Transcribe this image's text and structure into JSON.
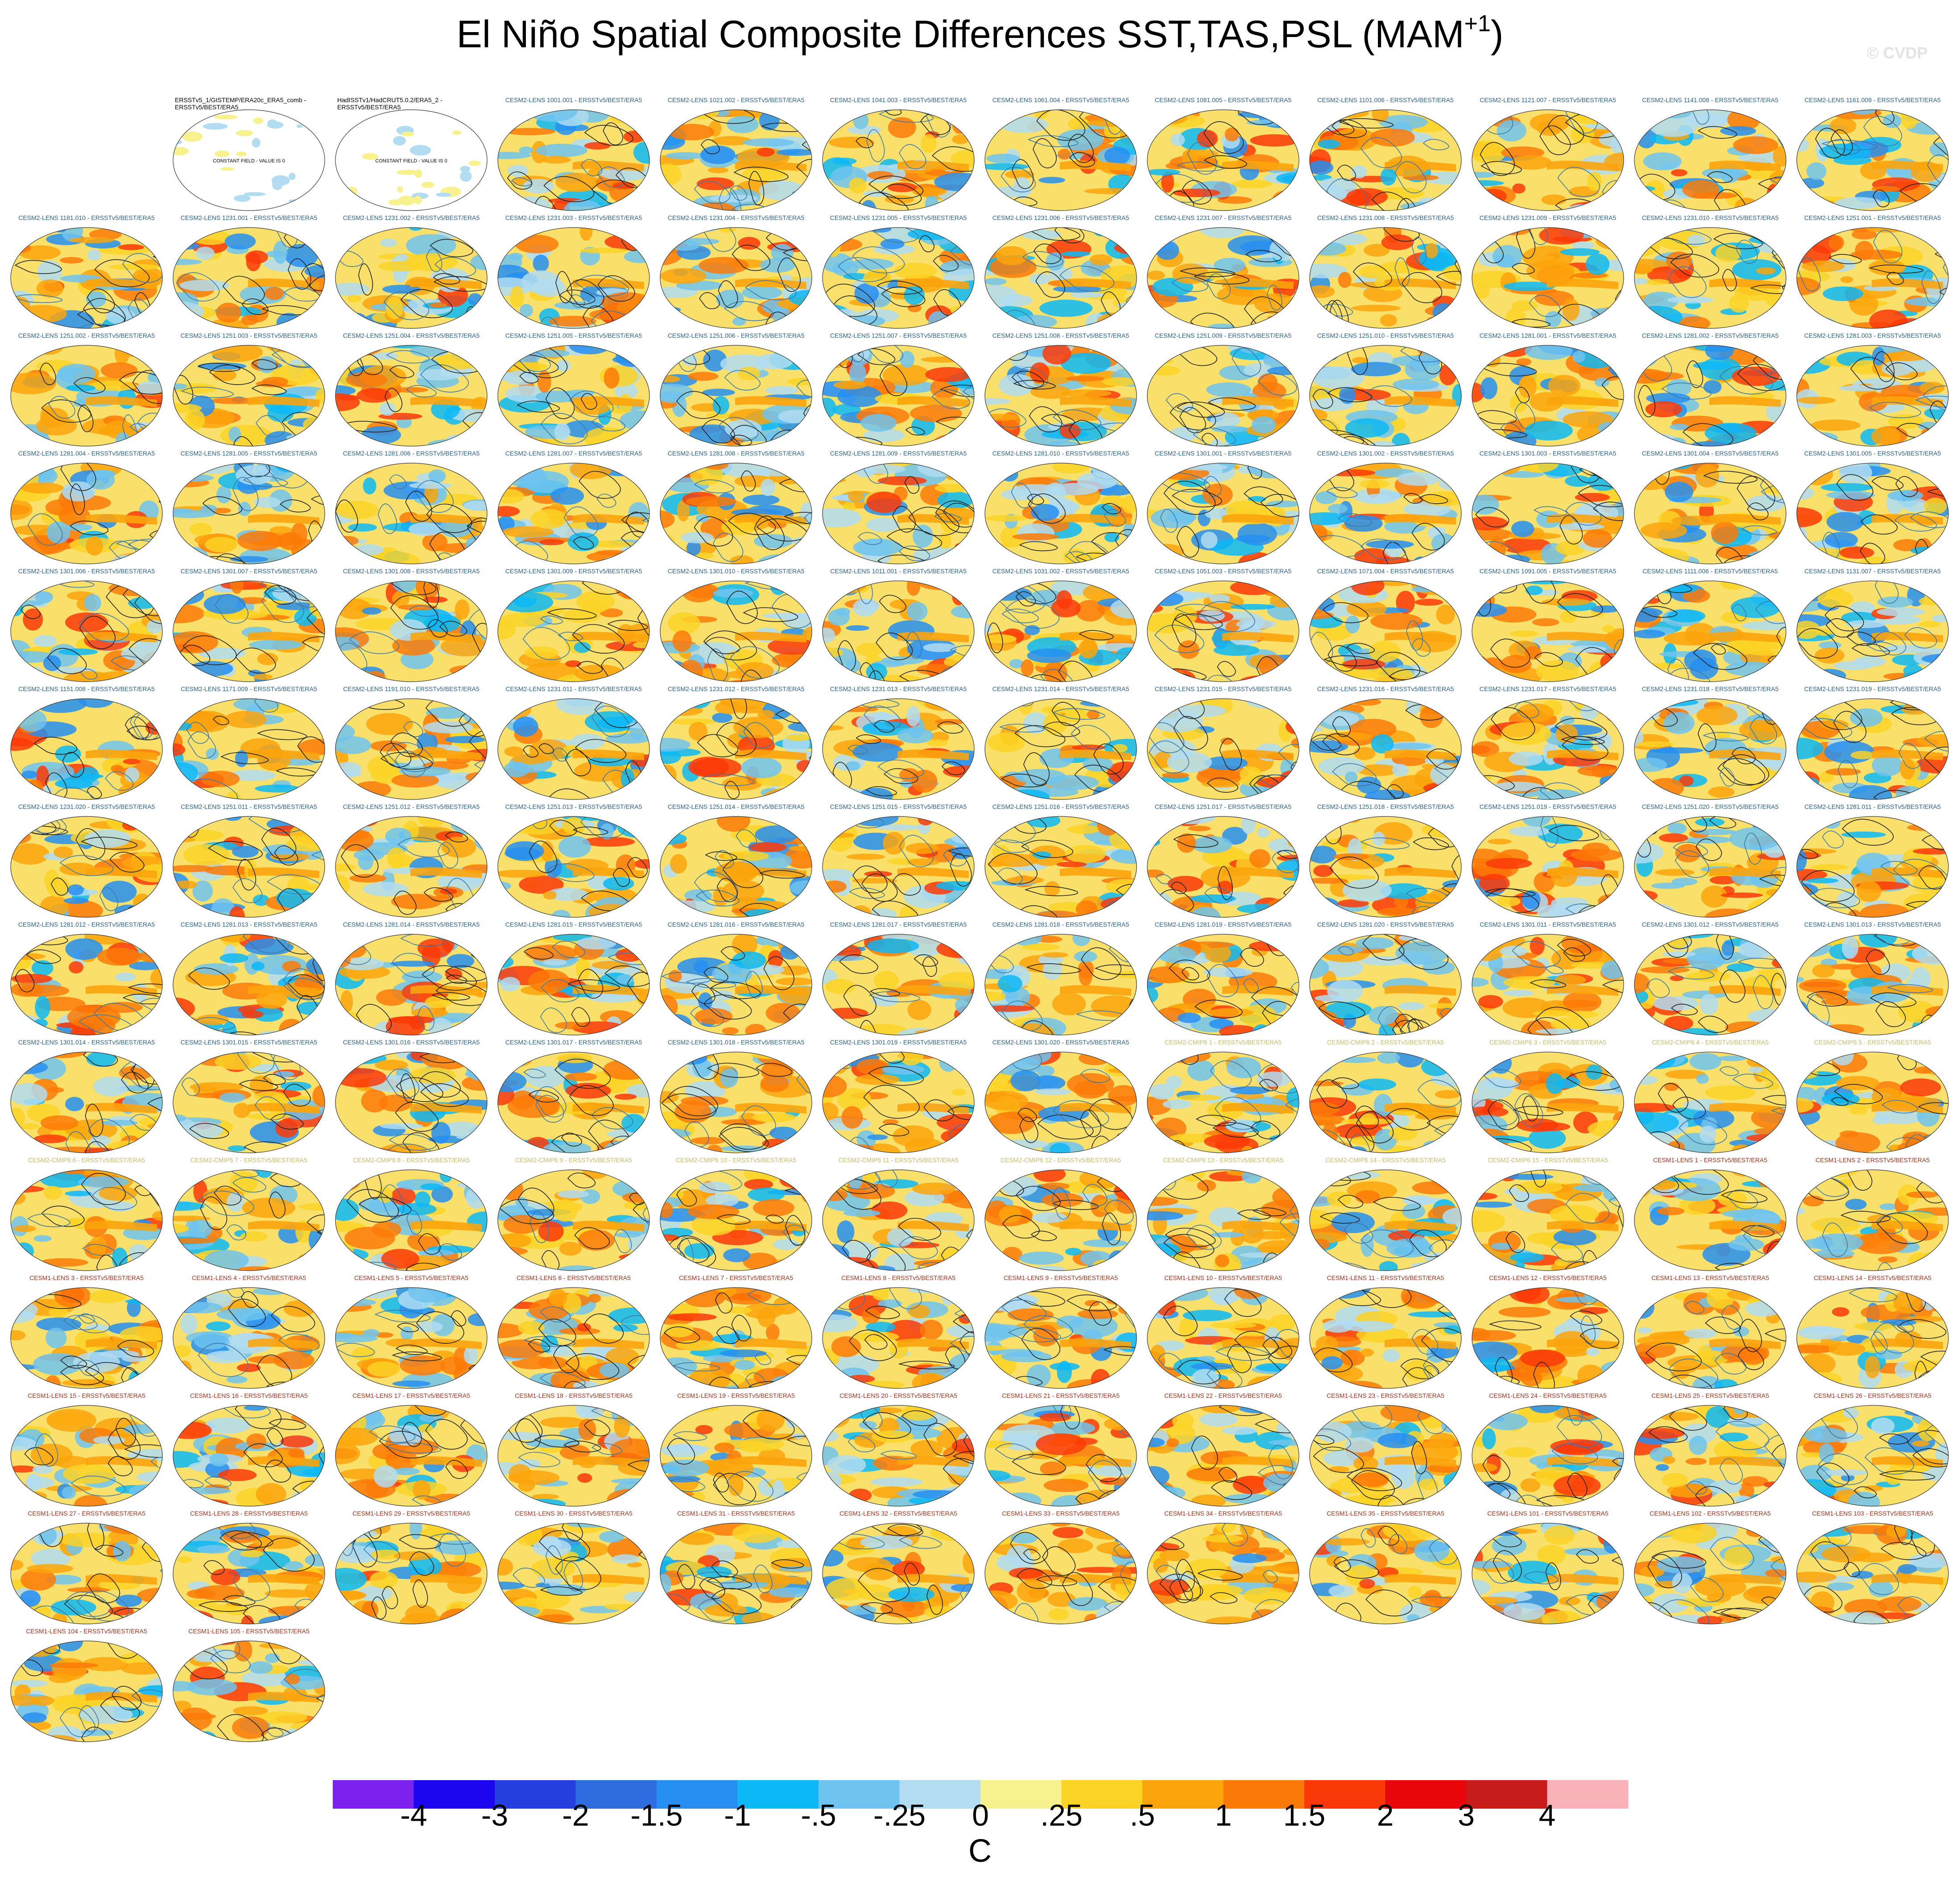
{
  "title": "El Niño Spatial Composite Differences SST,TAS,PSL (MAM",
  "title_superscript": "+1",
  "title_suffix": ")",
  "credit": "© CVDP",
  "label_colors": {
    "obs": "#000000",
    "cesm2_lens": "#2b5f86",
    "cesm2_cmip6": "#c8ba6a",
    "cesm1_lens": "#a0321c"
  },
  "panels": [
    {
      "label": "ERSSTv5_1/GISTEMP/ERA20c_ERA5_comb - ERSSTv5/BEST/ERA5",
      "group": "obs"
    },
    {
      "label": "HadISSTv1/HadCRUT5.0.2/ERA5_2 - ERSSTv5/BEST/ERA5",
      "group": "obs"
    },
    {
      "label": "CESM2-LENS 1001.001 - ERSSTv5/BEST/ERA5",
      "group": "cesm2_lens"
    },
    {
      "label": "CESM2-LENS 1021.002 - ERSSTv5/BEST/ERA5",
      "group": "cesm2_lens"
    },
    {
      "label": "CESM2-LENS 1041.003 - ERSSTv5/BEST/ERA5",
      "group": "cesm2_lens"
    },
    {
      "label": "CESM2-LENS 1061.004 - ERSSTv5/BEST/ERA5",
      "group": "cesm2_lens"
    },
    {
      "label": "CESM2-LENS 1081.005 - ERSSTv5/BEST/ERA5",
      "group": "cesm2_lens"
    },
    {
      "label": "CESM2-LENS 1101.006 - ERSSTv5/BEST/ERA5",
      "group": "cesm2_lens"
    },
    {
      "label": "CESM2-LENS 1121.007 - ERSSTv5/BEST/ERA5",
      "group": "cesm2_lens"
    },
    {
      "label": "CESM2-LENS 1141.008 - ERSSTv5/BEST/ERA5",
      "group": "cesm2_lens"
    },
    {
      "label": "CESM2-LENS 1161.009 - ERSSTv5/BEST/ERA5",
      "group": "cesm2_lens"
    },
    {
      "label": "CESM2-LENS 1181.010 - ERSSTv5/BEST/ERA5",
      "group": "cesm2_lens"
    },
    {
      "label": "CESM2-LENS 1231.001 - ERSSTv5/BEST/ERA5",
      "group": "cesm2_lens"
    },
    {
      "label": "CESM2-LENS 1231.002 - ERSSTv5/BEST/ERA5",
      "group": "cesm2_lens"
    },
    {
      "label": "CESM2-LENS 1231.003 - ERSSTv5/BEST/ERA5",
      "group": "cesm2_lens"
    },
    {
      "label": "CESM2-LENS 1231.004 - ERSSTv5/BEST/ERA5",
      "group": "cesm2_lens"
    },
    {
      "label": "CESM2-LENS 1231.005 - ERSSTv5/BEST/ERA5",
      "group": "cesm2_lens"
    },
    {
      "label": "CESM2-LENS 1231.006 - ERSSTv5/BEST/ERA5",
      "group": "cesm2_lens"
    },
    {
      "label": "CESM2-LENS 1231.007 - ERSSTv5/BEST/ERA5",
      "group": "cesm2_lens"
    },
    {
      "label": "CESM2-LENS 1231.008 - ERSSTv5/BEST/ERA5",
      "group": "cesm2_lens"
    },
    {
      "label": "CESM2-LENS 1231.009 - ERSSTv5/BEST/ERA5",
      "group": "cesm2_lens"
    },
    {
      "label": "CESM2-LENS 1231.010 - ERSSTv5/BEST/ERA5",
      "group": "cesm2_lens"
    },
    {
      "label": "CESM2-LENS 1251.001 - ERSSTv5/BEST/ERA5",
      "group": "cesm2_lens"
    },
    {
      "label": "CESM2-LENS 1251.002 - ERSSTv5/BEST/ERA5",
      "group": "cesm2_lens"
    },
    {
      "label": "CESM2-LENS 1251.003 - ERSSTv5/BEST/ERA5",
      "group": "cesm2_lens"
    },
    {
      "label": "CESM2-LENS 1251.004 - ERSSTv5/BEST/ERA5",
      "group": "cesm2_lens"
    },
    {
      "label": "CESM2-LENS 1251.005 - ERSSTv5/BEST/ERA5",
      "group": "cesm2_lens"
    },
    {
      "label": "CESM2-LENS 1251.006 - ERSSTv5/BEST/ERA5",
      "group": "cesm2_lens"
    },
    {
      "label": "CESM2-LENS 1251.007 - ERSSTv5/BEST/ERA5",
      "group": "cesm2_lens"
    },
    {
      "label": "CESM2-LENS 1251.008 - ERSSTv5/BEST/ERA5",
      "group": "cesm2_lens"
    },
    {
      "label": "CESM2-LENS 1251.009 - ERSSTv5/BEST/ERA5",
      "group": "cesm2_lens"
    },
    {
      "label": "CESM2-LENS 1251.010 - ERSSTv5/BEST/ERA5",
      "group": "cesm2_lens"
    },
    {
      "label": "CESM2-LENS 1281.001 - ERSSTv5/BEST/ERA5",
      "group": "cesm2_lens"
    },
    {
      "label": "CESM2-LENS 1281.002 - ERSSTv5/BEST/ERA5",
      "group": "cesm2_lens"
    },
    {
      "label": "CESM2-LENS 1281.003 - ERSSTv5/BEST/ERA5",
      "group": "cesm2_lens"
    },
    {
      "label": "CESM2-LENS 1281.004 - ERSSTv5/BEST/ERA5",
      "group": "cesm2_lens"
    },
    {
      "label": "CESM2-LENS 1281.005 - ERSSTv5/BEST/ERA5",
      "group": "cesm2_lens"
    },
    {
      "label": "CESM2-LENS 1281.006 - ERSSTv5/BEST/ERA5",
      "group": "cesm2_lens"
    },
    {
      "label": "CESM2-LENS 1281.007 - ERSSTv5/BEST/ERA5",
      "group": "cesm2_lens"
    },
    {
      "label": "CESM2-LENS 1281.008 - ERSSTv5/BEST/ERA5",
      "group": "cesm2_lens"
    },
    {
      "label": "CESM2-LENS 1281.009 - ERSSTv5/BEST/ERA5",
      "group": "cesm2_lens"
    },
    {
      "label": "CESM2-LENS 1281.010 - ERSSTv5/BEST/ERA5",
      "group": "cesm2_lens"
    },
    {
      "label": "CESM2-LENS 1301.001 - ERSSTv5/BEST/ERA5",
      "group": "cesm2_lens"
    },
    {
      "label": "CESM2-LENS 1301.002 - ERSSTv5/BEST/ERA5",
      "group": "cesm2_lens"
    },
    {
      "label": "CESM2-LENS 1301.003 - ERSSTv5/BEST/ERA5",
      "group": "cesm2_lens"
    },
    {
      "label": "CESM2-LENS 1301.004 - ERSSTv5/BEST/ERA5",
      "group": "cesm2_lens"
    },
    {
      "label": "CESM2-LENS 1301.005 - ERSSTv5/BEST/ERA5",
      "group": "cesm2_lens"
    },
    {
      "label": "CESM2-LENS 1301.006 - ERSSTv5/BEST/ERA5",
      "group": "cesm2_lens"
    },
    {
      "label": "CESM2-LENS 1301.007 - ERSSTv5/BEST/ERA5",
      "group": "cesm2_lens"
    },
    {
      "label": "CESM2-LENS 1301.008 - ERSSTv5/BEST/ERA5",
      "group": "cesm2_lens"
    },
    {
      "label": "CESM2-LENS 1301.009 - ERSSTv5/BEST/ERA5",
      "group": "cesm2_lens"
    },
    {
      "label": "CESM2-LENS 1301.010 - ERSSTv5/BEST/ERA5",
      "group": "cesm2_lens"
    },
    {
      "label": "CESM2-LENS 1011.001 - ERSSTv5/BEST/ERA5",
      "group": "cesm2_lens"
    },
    {
      "label": "CESM2-LENS 1031.002 - ERSSTv5/BEST/ERA5",
      "group": "cesm2_lens"
    },
    {
      "label": "CESM2-LENS 1051.003 - ERSSTv5/BEST/ERA5",
      "group": "cesm2_lens"
    },
    {
      "label": "CESM2-LENS 1071.004 - ERSSTv5/BEST/ERA5",
      "group": "cesm2_lens"
    },
    {
      "label": "CESM2-LENS 1091.005 - ERSSTv5/BEST/ERA5",
      "group": "cesm2_lens"
    },
    {
      "label": "CESM2-LENS 1111.006 - ERSSTv5/BEST/ERA5",
      "group": "cesm2_lens"
    },
    {
      "label": "CESM2-LENS 1131.007 - ERSSTv5/BEST/ERA5",
      "group": "cesm2_lens"
    },
    {
      "label": "CESM2-LENS 1151.008 - ERSSTv5/BEST/ERA5",
      "group": "cesm2_lens"
    },
    {
      "label": "CESM2-LENS 1171.009 - ERSSTv5/BEST/ERA5",
      "group": "cesm2_lens"
    },
    {
      "label": "CESM2-LENS 1191.010 - ERSSTv5/BEST/ERA5",
      "group": "cesm2_lens"
    },
    {
      "label": "CESM2-LENS 1231.011 - ERSSTv5/BEST/ERA5",
      "group": "cesm2_lens"
    },
    {
      "label": "CESM2-LENS 1231.012 - ERSSTv5/BEST/ERA5",
      "group": "cesm2_lens"
    },
    {
      "label": "CESM2-LENS 1231.013 - ERSSTv5/BEST/ERA5",
      "group": "cesm2_lens"
    },
    {
      "label": "CESM2-LENS 1231.014 - ERSSTv5/BEST/ERA5",
      "group": "cesm2_lens"
    },
    {
      "label": "CESM2-LENS 1231.015 - ERSSTv5/BEST/ERA5",
      "group": "cesm2_lens"
    },
    {
      "label": "CESM2-LENS 1231.016 - ERSSTv5/BEST/ERA5",
      "group": "cesm2_lens"
    },
    {
      "label": "CESM2-LENS 1231.017 - ERSSTv5/BEST/ERA5",
      "group": "cesm2_lens"
    },
    {
      "label": "CESM2-LENS 1231.018 - ERSSTv5/BEST/ERA5",
      "group": "cesm2_lens"
    },
    {
      "label": "CESM2-LENS 1231.019 - ERSSTv5/BEST/ERA5",
      "group": "cesm2_lens"
    },
    {
      "label": "CESM2-LENS 1231.020 - ERSSTv5/BEST/ERA5",
      "group": "cesm2_lens"
    },
    {
      "label": "CESM2-LENS 1251.011 - ERSSTv5/BEST/ERA5",
      "group": "cesm2_lens"
    },
    {
      "label": "CESM2-LENS 1251.012 - ERSSTv5/BEST/ERA5",
      "group": "cesm2_lens"
    },
    {
      "label": "CESM2-LENS 1251.013 - ERSSTv5/BEST/ERA5",
      "group": "cesm2_lens"
    },
    {
      "label": "CESM2-LENS 1251.014 - ERSSTv5/BEST/ERA5",
      "group": "cesm2_lens"
    },
    {
      "label": "CESM2-LENS 1251.015 - ERSSTv5/BEST/ERA5",
      "group": "cesm2_lens"
    },
    {
      "label": "CESM2-LENS 1251.016 - ERSSTv5/BEST/ERA5",
      "group": "cesm2_lens"
    },
    {
      "label": "CESM2-LENS 1251.017 - ERSSTv5/BEST/ERA5",
      "group": "cesm2_lens"
    },
    {
      "label": "CESM2-LENS 1251.018 - ERSSTv5/BEST/ERA5",
      "group": "cesm2_lens"
    },
    {
      "label": "CESM2-LENS 1251.019 - ERSSTv5/BEST/ERA5",
      "group": "cesm2_lens"
    },
    {
      "label": "CESM2-LENS 1251.020 - ERSSTv5/BEST/ERA5",
      "group": "cesm2_lens"
    },
    {
      "label": "CESM2-LENS 1281.011 - ERSSTv5/BEST/ERA5",
      "group": "cesm2_lens"
    },
    {
      "label": "CESM2-LENS 1281.012 - ERSSTv5/BEST/ERA5",
      "group": "cesm2_lens"
    },
    {
      "label": "CESM2-LENS 1281.013 - ERSSTv5/BEST/ERA5",
      "group": "cesm2_lens"
    },
    {
      "label": "CESM2-LENS 1281.014 - ERSSTv5/BEST/ERA5",
      "group": "cesm2_lens"
    },
    {
      "label": "CESM2-LENS 1281.015 - ERSSTv5/BEST/ERA5",
      "group": "cesm2_lens"
    },
    {
      "label": "CESM2-LENS 1281.016 - ERSSTv5/BEST/ERA5",
      "group": "cesm2_lens"
    },
    {
      "label": "CESM2-LENS 1281.017 - ERSSTv5/BEST/ERA5",
      "group": "cesm2_lens"
    },
    {
      "label": "CESM2-LENS 1281.018 - ERSSTv5/BEST/ERA5",
      "group": "cesm2_lens"
    },
    {
      "label": "CESM2-LENS 1281.019 - ERSSTv5/BEST/ERA5",
      "group": "cesm2_lens"
    },
    {
      "label": "CESM2-LENS 1281.020 - ERSSTv5/BEST/ERA5",
      "group": "cesm2_lens"
    },
    {
      "label": "CESM2-LENS 1301.011 - ERSSTv5/BEST/ERA5",
      "group": "cesm2_lens"
    },
    {
      "label": "CESM2-LENS 1301.012 - ERSSTv5/BEST/ERA5",
      "group": "cesm2_lens"
    },
    {
      "label": "CESM2-LENS 1301.013 - ERSSTv5/BEST/ERA5",
      "group": "cesm2_lens"
    },
    {
      "label": "CESM2-LENS 1301.014 - ERSSTv5/BEST/ERA5",
      "group": "cesm2_lens"
    },
    {
      "label": "CESM2-LENS 1301.015 - ERSSTv5/BEST/ERA5",
      "group": "cesm2_lens"
    },
    {
      "label": "CESM2-LENS 1301.016 - ERSSTv5/BEST/ERA5",
      "group": "cesm2_lens"
    },
    {
      "label": "CESM2-LENS 1301.017 - ERSSTv5/BEST/ERA5",
      "group": "cesm2_lens"
    },
    {
      "label": "CESM2-LENS 1301.018 - ERSSTv5/BEST/ERA5",
      "group": "cesm2_lens"
    },
    {
      "label": "CESM2-LENS 1301.019 - ERSSTv5/BEST/ERA5",
      "group": "cesm2_lens"
    },
    {
      "label": "CESM2-LENS 1301.020 - ERSSTv5/BEST/ERA5",
      "group": "cesm2_lens"
    },
    {
      "label": "CESM2-CMIP6 1 - ERSSTv5/BEST/ERA5",
      "group": "cesm2_cmip6"
    },
    {
      "label": "CESM2-CMIP6 2 - ERSSTv5/BEST/ERA5",
      "group": "cesm2_cmip6"
    },
    {
      "label": "CESM2-CMIP6 3 - ERSSTv5/BEST/ERA5",
      "group": "cesm2_cmip6"
    },
    {
      "label": "CESM2-CMIP6 4 - ERSSTv5/BEST/ERA5",
      "group": "cesm2_cmip6"
    },
    {
      "label": "CESM2-CMIP6 5 - ERSSTv5/BEST/ERA5",
      "group": "cesm2_cmip6"
    },
    {
      "label": "CESM2-CMIP6 6 - ERSSTv5/BEST/ERA5",
      "group": "cesm2_cmip6"
    },
    {
      "label": "CESM2-CMIP6 7 - ERSSTv5/BEST/ERA5",
      "group": "cesm2_cmip6"
    },
    {
      "label": "CESM2-CMIP6 8 - ERSSTv5/BEST/ERA5",
      "group": "cesm2_cmip6"
    },
    {
      "label": "CESM2-CMIP6 9 - ERSSTv5/BEST/ERA5",
      "group": "cesm2_cmip6"
    },
    {
      "label": "CESM2-CMIP6 10 - ERSSTv5/BEST/ERA5",
      "group": "cesm2_cmip6"
    },
    {
      "label": "CESM2-CMIP6 11 - ERSSTv5/BEST/ERA5",
      "group": "cesm2_cmip6"
    },
    {
      "label": "CESM2-CMIP6 12 - ERSSTv5/BEST/ERA5",
      "group": "cesm2_cmip6"
    },
    {
      "label": "CESM2-CMIP6 13 - ERSSTv5/BEST/ERA5",
      "group": "cesm2_cmip6"
    },
    {
      "label": "CESM2-CMIP6 14 - ERSSTv5/BEST/ERA5",
      "group": "cesm2_cmip6"
    },
    {
      "label": "CESM2-CMIP6 15 - ERSSTv5/BEST/ERA5",
      "group": "cesm2_cmip6"
    },
    {
      "label": "CESM1-LENS 1 - ERSSTv5/BEST/ERA5",
      "group": "cesm1_lens"
    },
    {
      "label": "CESM1-LENS 2 - ERSSTv5/BEST/ERA5",
      "group": "cesm1_lens"
    },
    {
      "label": "CESM1-LENS 3 - ERSSTv5/BEST/ERA5",
      "group": "cesm1_lens"
    },
    {
      "label": "CESM1-LENS 4 - ERSSTv5/BEST/ERA5",
      "group": "cesm1_lens"
    },
    {
      "label": "CESM1-LENS 5 - ERSSTv5/BEST/ERA5",
      "group": "cesm1_lens"
    },
    {
      "label": "CESM1-LENS 6 - ERSSTv5/BEST/ERA5",
      "group": "cesm1_lens"
    },
    {
      "label": "CESM1-LENS 7 - ERSSTv5/BEST/ERA5",
      "group": "cesm1_lens"
    },
    {
      "label": "CESM1-LENS 8 - ERSSTv5/BEST/ERA5",
      "group": "cesm1_lens"
    },
    {
      "label": "CESM1-LENS 9 - ERSSTv5/BEST/ERA5",
      "group": "cesm1_lens"
    },
    {
      "label": "CESM1-LENS 10 - ERSSTv5/BEST/ERA5",
      "group": "cesm1_lens"
    },
    {
      "label": "CESM1-LENS 11 - ERSSTv5/BEST/ERA5",
      "group": "cesm1_lens"
    },
    {
      "label": "CESM1-LENS 12 - ERSSTv5/BEST/ERA5",
      "group": "cesm1_lens"
    },
    {
      "label": "CESM1-LENS 13 - ERSSTv5/BEST/ERA5",
      "group": "cesm1_lens"
    },
    {
      "label": "CESM1-LENS 14 - ERSSTv5/BEST/ERA5",
      "group": "cesm1_lens"
    },
    {
      "label": "CESM1-LENS 15 - ERSSTv5/BEST/ERA5",
      "group": "cesm1_lens"
    },
    {
      "label": "CESM1-LENS 16 - ERSSTv5/BEST/ERA5",
      "group": "cesm1_lens"
    },
    {
      "label": "CESM1-LENS 17 - ERSSTv5/BEST/ERA5",
      "group": "cesm1_lens"
    },
    {
      "label": "CESM1-LENS 18 - ERSSTv5/BEST/ERA5",
      "group": "cesm1_lens"
    },
    {
      "label": "CESM1-LENS 19 - ERSSTv5/BEST/ERA5",
      "group": "cesm1_lens"
    },
    {
      "label": "CESM1-LENS 20 - ERSSTv5/BEST/ERA5",
      "group": "cesm1_lens"
    },
    {
      "label": "CESM1-LENS 21 - ERSSTv5/BEST/ERA5",
      "group": "cesm1_lens"
    },
    {
      "label": "CESM1-LENS 22 - ERSSTv5/BEST/ERA5",
      "group": "cesm1_lens"
    },
    {
      "label": "CESM1-LENS 23 - ERSSTv5/BEST/ERA5",
      "group": "cesm1_lens"
    },
    {
      "label": "CESM1-LENS 24 - ERSSTv5/BEST/ERA5",
      "group": "cesm1_lens"
    },
    {
      "label": "CESM1-LENS 25 - ERSSTv5/BEST/ERA5",
      "group": "cesm1_lens"
    },
    {
      "label": "CESM1-LENS 26 - ERSSTv5/BEST/ERA5",
      "group": "cesm1_lens"
    },
    {
      "label": "CESM1-LENS 27 - ERSSTv5/BEST/ERA5",
      "group": "cesm1_lens"
    },
    {
      "label": "CESM1-LENS 28 - ERSSTv5/BEST/ERA5",
      "group": "cesm1_lens"
    },
    {
      "label": "CESM1-LENS 29 - ERSSTv5/BEST/ERA5",
      "group": "cesm1_lens"
    },
    {
      "label": "CESM1-LENS 30 - ERSSTv5/BEST/ERA5",
      "group": "cesm1_lens"
    },
    {
      "label": "CESM1-LENS 31 - ERSSTv5/BEST/ERA5",
      "group": "cesm1_lens"
    },
    {
      "label": "CESM1-LENS 32 - ERSSTv5/BEST/ERA5",
      "group": "cesm1_lens"
    },
    {
      "label": "CESM1-LENS 33 - ERSSTv5/BEST/ERA5",
      "group": "cesm1_lens"
    },
    {
      "label": "CESM1-LENS 34 - ERSSTv5/BEST/ERA5",
      "group": "cesm1_lens"
    },
    {
      "label": "CESM1-LENS 35 - ERSSTv5/BEST/ERA5",
      "group": "cesm1_lens"
    },
    {
      "label": "CESM1-LENS 101 - ERSSTv5/BEST/ERA5",
      "group": "cesm1_lens"
    },
    {
      "label": "CESM1-LENS 102 - ERSSTv5/BEST/ERA5",
      "group": "cesm1_lens"
    },
    {
      "label": "CESM1-LENS 103 - ERSSTv5/BEST/ERA5",
      "group": "cesm1_lens"
    },
    {
      "label": "CESM1-LENS 104 - ERSSTv5/BEST/ERA5",
      "group": "cesm1_lens"
    },
    {
      "label": "CESM1-LENS 105 - ERSSTv5/BEST/ERA5",
      "group": "cesm1_lens"
    }
  ],
  "chart_data": {
    "type": "heatmap",
    "title": "El Niño Spatial Composite Differences SST,TAS,PSL (MAM+1)",
    "colorbar": {
      "units": "C",
      "tick_labels": [
        "-4",
        "-3",
        "-2",
        "-1.5",
        "-1",
        "-.5",
        "-.25",
        "0",
        ".25",
        ".5",
        "1",
        "1.5",
        "2",
        "3",
        "4"
      ],
      "colors": [
        "#7d22ee",
        "#1c06ef",
        "#243fde",
        "#2e6de0",
        "#268ff1",
        "#0cb8f6",
        "#6fc3ef",
        "#b1dcf1",
        "#f7f28e",
        "#fbd226",
        "#fba40c",
        "#fb7a07",
        "#fb3908",
        "#e8070a",
        "#c81c1c",
        "#f9b2b7"
      ]
    },
    "obs_panel_text": "CONSTANT FIELD - VALUE IS 0"
  }
}
